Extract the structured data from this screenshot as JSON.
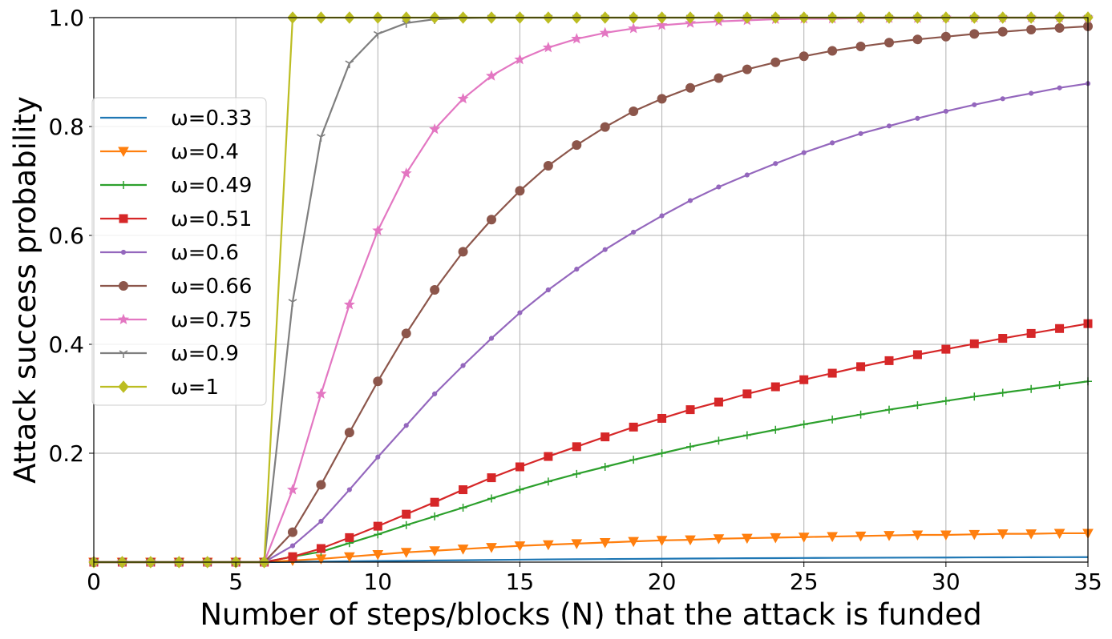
{
  "chart_data": {
    "type": "line",
    "title": "",
    "xlabel": "Number of steps/blocks (N) that the attack is funded",
    "ylabel": "Attack success probability",
    "xlim": [
      0,
      35
    ],
    "ylim": [
      0,
      1.0
    ],
    "xticks": [
      0,
      5,
      10,
      15,
      20,
      25,
      30,
      35
    ],
    "xtick_labels": [
      "0",
      "5",
      "10",
      "15",
      "20",
      "25",
      "30",
      "35"
    ],
    "yticks": [
      0.2,
      0.4,
      0.6,
      0.8,
      1.0
    ],
    "ytick_labels": [
      "0.2",
      "0.4",
      "0.6",
      "0.8",
      "1.0"
    ],
    "grid": true,
    "legend_position": "center-left",
    "x": [
      0,
      1,
      2,
      3,
      4,
      5,
      6,
      7,
      8,
      9,
      10,
      11,
      12,
      13,
      14,
      15,
      16,
      17,
      18,
      19,
      20,
      21,
      22,
      23,
      24,
      25,
      26,
      27,
      28,
      29,
      30,
      31,
      32,
      33,
      34,
      35
    ],
    "series": [
      {
        "name": "ω=0.33",
        "color": "#1f77b4",
        "marker": "none",
        "values": [
          0,
          0,
          0,
          0,
          0,
          0,
          0,
          0.0005,
          0.001,
          0.0015,
          0.002,
          0.0025,
          0.003,
          0.0035,
          0.004,
          0.0045,
          0.005,
          0.0053,
          0.0056,
          0.006,
          0.0063,
          0.0066,
          0.0069,
          0.0072,
          0.0074,
          0.0076,
          0.0078,
          0.008,
          0.0082,
          0.0084,
          0.0085,
          0.0087,
          0.0088,
          0.009,
          0.0091,
          0.0092
        ]
      },
      {
        "name": "ω=0.4",
        "color": "#ff7f0e",
        "marker": "triangle-down",
        "values": [
          0,
          0,
          0,
          0,
          0,
          0,
          0,
          0.003,
          0.006,
          0.01,
          0.014,
          0.018,
          0.021,
          0.024,
          0.027,
          0.03,
          0.032,
          0.034,
          0.036,
          0.038,
          0.04,
          0.041,
          0.043,
          0.044,
          0.045,
          0.046,
          0.047,
          0.048,
          0.049,
          0.05,
          0.05,
          0.051,
          0.052,
          0.052,
          0.053,
          0.053
        ]
      },
      {
        "name": "ω=0.49",
        "color": "#2ca02c",
        "marker": "plus",
        "values": [
          0,
          0,
          0,
          0,
          0,
          0,
          0,
          0.01,
          0.019,
          0.035,
          0.051,
          0.068,
          0.084,
          0.1,
          0.117,
          0.133,
          0.148,
          0.162,
          0.175,
          0.188,
          0.2,
          0.212,
          0.223,
          0.233,
          0.243,
          0.253,
          0.262,
          0.271,
          0.28,
          0.288,
          0.296,
          0.304,
          0.311,
          0.318,
          0.325,
          0.332
        ]
      },
      {
        "name": "ω=0.51",
        "color": "#d62728",
        "marker": "square",
        "values": [
          0,
          0,
          0,
          0,
          0,
          0,
          0,
          0.01,
          0.025,
          0.045,
          0.066,
          0.088,
          0.11,
          0.133,
          0.155,
          0.175,
          0.194,
          0.212,
          0.23,
          0.248,
          0.264,
          0.28,
          0.294,
          0.309,
          0.322,
          0.335,
          0.347,
          0.359,
          0.37,
          0.381,
          0.391,
          0.401,
          0.411,
          0.42,
          0.429,
          0.438
        ]
      },
      {
        "name": "ω=0.6",
        "color": "#9467bd",
        "marker": "dot",
        "values": [
          0,
          0,
          0,
          0,
          0,
          0,
          0,
          0.03,
          0.075,
          0.133,
          0.193,
          0.251,
          0.309,
          0.361,
          0.411,
          0.458,
          0.5,
          0.538,
          0.574,
          0.606,
          0.636,
          0.664,
          0.689,
          0.711,
          0.732,
          0.752,
          0.77,
          0.787,
          0.801,
          0.815,
          0.828,
          0.84,
          0.851,
          0.861,
          0.871,
          0.879
        ]
      },
      {
        "name": "ω=0.66",
        "color": "#8c564b",
        "marker": "circle",
        "values": [
          0,
          0,
          0,
          0,
          0,
          0,
          0,
          0.055,
          0.142,
          0.238,
          0.332,
          0.42,
          0.5,
          0.57,
          0.629,
          0.682,
          0.728,
          0.766,
          0.799,
          0.828,
          0.851,
          0.871,
          0.889,
          0.905,
          0.918,
          0.929,
          0.939,
          0.947,
          0.954,
          0.96,
          0.965,
          0.97,
          0.974,
          0.978,
          0.981,
          0.984
        ]
      },
      {
        "name": "ω=0.75",
        "color": "#e377c2",
        "marker": "star",
        "values": [
          0,
          0,
          0,
          0,
          0,
          0,
          0,
          0.133,
          0.309,
          0.473,
          0.609,
          0.714,
          0.795,
          0.851,
          0.893,
          0.923,
          0.945,
          0.961,
          0.972,
          0.98,
          0.986,
          0.99,
          0.993,
          0.995,
          0.997,
          0.998,
          0.998,
          0.999,
          0.999,
          0.999,
          1.0,
          1.0,
          1.0,
          1.0,
          1.0,
          1.0
        ]
      },
      {
        "name": "ω=0.9",
        "color": "#7f7f7f",
        "marker": "tri-down",
        "values": [
          0,
          0,
          0,
          0,
          0,
          0,
          0,
          0.478,
          0.781,
          0.916,
          0.97,
          0.99,
          0.997,
          0.999,
          1.0,
          1.0,
          1.0,
          1.0,
          1.0,
          1.0,
          1.0,
          1.0,
          1.0,
          1.0,
          1.0,
          1.0,
          1.0,
          1.0,
          1.0,
          1.0,
          1.0,
          1.0,
          1.0,
          1.0,
          1.0,
          1.0
        ]
      },
      {
        "name": "ω=1",
        "color": "#bcbd22",
        "marker": "diamond",
        "values": [
          0,
          0,
          0,
          0,
          0,
          0,
          0,
          1.0,
          1.0,
          1.0,
          1.0,
          1.0,
          1.0,
          1.0,
          1.0,
          1.0,
          1.0,
          1.0,
          1.0,
          1.0,
          1.0,
          1.0,
          1.0,
          1.0,
          1.0,
          1.0,
          1.0,
          1.0,
          1.0,
          1.0,
          1.0,
          1.0,
          1.0,
          1.0,
          1.0,
          1.0
        ]
      }
    ]
  }
}
